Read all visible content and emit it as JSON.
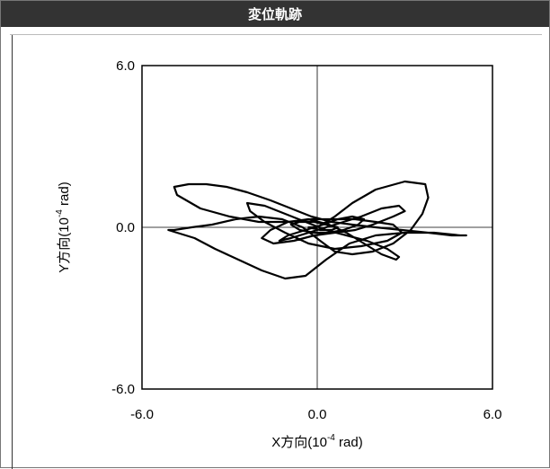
{
  "title": "変位軌跡",
  "colors": {
    "title_bg": "#333333",
    "line": "#000000",
    "frame": "#777777"
  },
  "chart_data": {
    "type": "line",
    "title": "変位軌跡",
    "xlabel_main": "X方向(10",
    "xlabel_sup": "-4",
    "xlabel_end": " rad)",
    "ylabel_main": "Y方向(10",
    "ylabel_sup": "-4",
    "ylabel_end": " rad)",
    "xlim": [
      -6.0,
      6.0
    ],
    "ylim": [
      -6.0,
      6.0
    ],
    "x_ticks": [
      "-6.0",
      "0.0",
      "6.0"
    ],
    "y_ticks": [
      "6.0",
      "0.0",
      "-6.0"
    ],
    "grid": false,
    "crosshair_at_origin": true,
    "series": [
      {
        "x": [
          0.0,
          0.6,
          1.2,
          2.0,
          3.0,
          3.7,
          3.8,
          3.6,
          3.2,
          2.6,
          1.9,
          1.2,
          0.6,
          0.1,
          -0.5,
          -1.2,
          -2.0,
          -2.8,
          -3.6,
          -4.3,
          -4.9,
          -5.1,
          -4.8,
          -4.2,
          -3.5,
          -2.7,
          -1.9,
          -1.1,
          -0.4,
          0.3,
          1.1,
          2.0,
          3.0,
          4.0,
          4.9,
          5.1,
          4.6,
          3.8,
          2.9,
          2.0,
          1.2,
          0.5,
          -0.2,
          -0.9,
          -1.6,
          -2.4,
          -3.1,
          -3.8,
          -4.4,
          -4.9,
          -4.8,
          -4.0,
          -3.0,
          -2.0,
          -1.0,
          -0.2,
          0.6,
          1.3,
          2.0,
          2.6,
          2.9,
          2.4,
          1.5,
          0.6,
          -0.3,
          -1.1,
          -1.8,
          -2.3,
          -2.4,
          -1.8,
          -1.1,
          -0.4,
          0.3,
          1.0,
          1.7,
          2.4,
          2.8,
          2.7,
          2.2,
          1.6,
          1.0,
          0.4,
          -0.3,
          -1.0,
          -1.6,
          -1.9,
          -1.5,
          -0.8,
          -0.1,
          0.6,
          1.3,
          1.9,
          2.6,
          3.0,
          2.8,
          2.2,
          1.5,
          0.9,
          0.3,
          -0.3,
          -0.9,
          -1.3,
          -1.0,
          -0.4,
          0.2,
          0.7,
          1.2,
          1.6,
          1.4,
          0.9,
          0.4,
          -0.1,
          -0.6,
          -0.9,
          -0.6,
          -0.1,
          0.3,
          0.7,
          0.5,
          0.1,
          -0.3,
          0.0
        ],
        "y": [
          0.0,
          0.4,
          0.9,
          1.4,
          1.7,
          1.6,
          1.1,
          0.5,
          -0.1,
          -0.6,
          -0.9,
          -1.0,
          -0.9,
          -0.5,
          0.0,
          0.3,
          0.4,
          0.3,
          0.1,
          0.0,
          -0.1,
          -0.1,
          -0.2,
          -0.4,
          -0.8,
          -1.2,
          -1.6,
          -1.9,
          -1.8,
          -1.2,
          -0.6,
          -0.3,
          -0.2,
          -0.2,
          -0.3,
          -0.3,
          -0.3,
          -0.2,
          -0.1,
          0.0,
          0.1,
          0.2,
          0.4,
          0.7,
          1.0,
          1.3,
          1.5,
          1.6,
          1.6,
          1.5,
          1.2,
          0.7,
          0.4,
          0.2,
          0.2,
          0.3,
          0.3,
          0.3,
          0.2,
          0.1,
          -0.2,
          -0.5,
          -0.7,
          -0.8,
          -0.6,
          -0.2,
          0.2,
          0.6,
          0.9,
          0.8,
          0.5,
          0.2,
          -0.1,
          -0.3,
          -0.5,
          -0.8,
          -1.1,
          -1.2,
          -1.0,
          -0.6,
          -0.2,
          0.1,
          0.3,
          0.2,
          -0.1,
          -0.4,
          -0.6,
          -0.5,
          -0.3,
          -0.2,
          -0.1,
          0.1,
          0.4,
          0.6,
          0.8,
          0.7,
          0.4,
          0.2,
          0.0,
          -0.2,
          -0.4,
          -0.5,
          -0.3,
          -0.1,
          0.1,
          0.3,
          0.4,
          0.3,
          0.1,
          -0.1,
          -0.2,
          -0.2,
          -0.1,
          0.1,
          0.2,
          0.2,
          0.1,
          0.0,
          -0.1,
          -0.1,
          0.0,
          0.0
        ]
      }
    ]
  }
}
